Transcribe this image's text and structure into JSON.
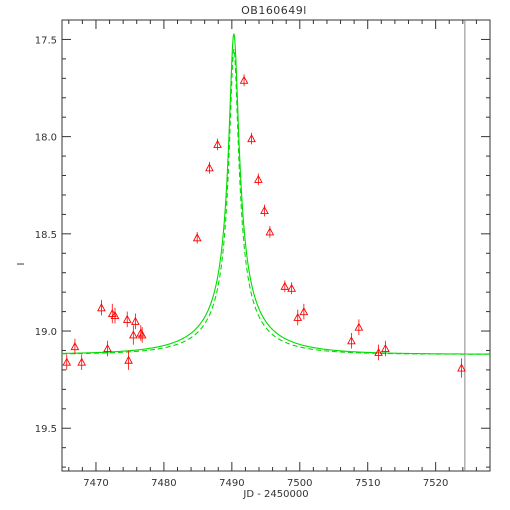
{
  "chart_data": {
    "type": "scatter",
    "title": "OB160649l",
    "xlabel": "JD - 2450000",
    "ylabel": "I",
    "xlim": [
      7465,
      7528
    ],
    "ylim": [
      17.4,
      19.72
    ],
    "y_inverted": true,
    "x_ticks": [
      7470,
      7480,
      7490,
      7500,
      7510,
      7520
    ],
    "y_ticks": [
      17.5,
      18.0,
      18.5,
      19.0,
      19.5
    ],
    "grid": false,
    "colors": {
      "data": "#ff0000",
      "model": "#00dd00",
      "frame": "#333333",
      "marker_line": "#888888"
    },
    "vertical_marker_x": 7524.3,
    "model_solid": {
      "t0": 7490.3,
      "peak_mag": 17.47,
      "baseline_mag": 19.12,
      "tE": 11.4,
      "u0": 0.062
    },
    "model_dashed": {
      "t0": 7490.3,
      "peak_mag": 17.55,
      "baseline_mag": 19.12,
      "tE": 9.6,
      "u0": 0.068
    },
    "series": [
      {
        "name": "data",
        "marker": "triangle",
        "points": [
          {
            "x": 7465.7,
            "y": 19.16,
            "err": 0.04
          },
          {
            "x": 7466.9,
            "y": 19.08,
            "err": 0.04
          },
          {
            "x": 7467.9,
            "y": 19.16,
            "err": 0.04
          },
          {
            "x": 7470.8,
            "y": 18.88,
            "err": 0.04
          },
          {
            "x": 7471.7,
            "y": 19.09,
            "err": 0.04
          },
          {
            "x": 7472.4,
            "y": 18.91,
            "err": 0.05
          },
          {
            "x": 7472.8,
            "y": 18.92,
            "err": 0.04
          },
          {
            "x": 7474.6,
            "y": 18.94,
            "err": 0.04
          },
          {
            "x": 7474.8,
            "y": 19.15,
            "err": 0.05
          },
          {
            "x": 7475.5,
            "y": 19.02,
            "err": 0.05
          },
          {
            "x": 7475.8,
            "y": 18.95,
            "err": 0.04
          },
          {
            "x": 7476.6,
            "y": 19.01,
            "err": 0.04
          },
          {
            "x": 7476.8,
            "y": 19.02,
            "err": 0.04
          },
          {
            "x": 7484.9,
            "y": 18.52,
            "err": 0.03
          },
          {
            "x": 7486.7,
            "y": 18.16,
            "err": 0.03
          },
          {
            "x": 7487.9,
            "y": 18.04,
            "err": 0.03
          },
          {
            "x": 7491.8,
            "y": 17.71,
            "err": 0.03
          },
          {
            "x": 7492.9,
            "y": 18.01,
            "err": 0.03
          },
          {
            "x": 7493.9,
            "y": 18.22,
            "err": 0.03
          },
          {
            "x": 7494.8,
            "y": 18.38,
            "err": 0.03
          },
          {
            "x": 7495.6,
            "y": 18.49,
            "err": 0.03
          },
          {
            "x": 7497.8,
            "y": 18.77,
            "err": 0.03
          },
          {
            "x": 7498.8,
            "y": 18.78,
            "err": 0.03
          },
          {
            "x": 7499.7,
            "y": 18.93,
            "err": 0.04
          },
          {
            "x": 7500.6,
            "y": 18.9,
            "err": 0.04
          },
          {
            "x": 7507.6,
            "y": 19.05,
            "err": 0.04
          },
          {
            "x": 7508.7,
            "y": 18.98,
            "err": 0.04
          },
          {
            "x": 7511.6,
            "y": 19.11,
            "err": 0.04
          },
          {
            "x": 7512.6,
            "y": 19.09,
            "err": 0.04
          },
          {
            "x": 7523.8,
            "y": 19.19,
            "err": 0.05
          }
        ]
      }
    ]
  }
}
